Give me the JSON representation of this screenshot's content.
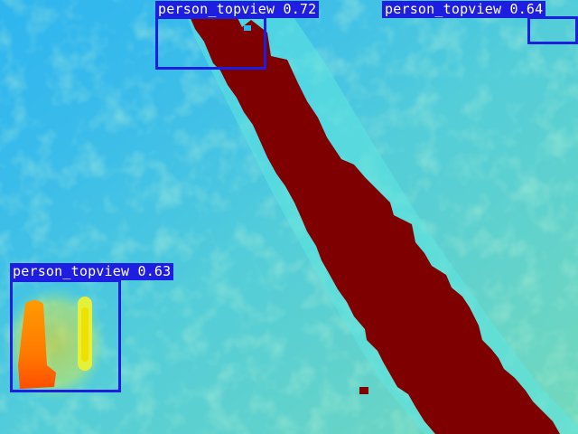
{
  "image": {
    "kind": "thermal top-view heatmap",
    "colormap": "jet",
    "colors": {
      "background_cool": "#2fb5ee",
      "background_warm": "#8ee8b0",
      "hot_band": "#7f0000",
      "person_core": "#ff8a00",
      "person_hot": "#ff5200",
      "box_and_label": "#1e1ee0",
      "label_text": "#ffffff"
    }
  },
  "detections": [
    {
      "class": "person_topview",
      "score": "0.72",
      "label": "person_topview 0.72"
    },
    {
      "class": "person_topview",
      "score": "0.64",
      "label": "person_topview 0.64"
    },
    {
      "class": "person_topview",
      "score": "0.63",
      "label": "person_topview 0.63"
    }
  ]
}
